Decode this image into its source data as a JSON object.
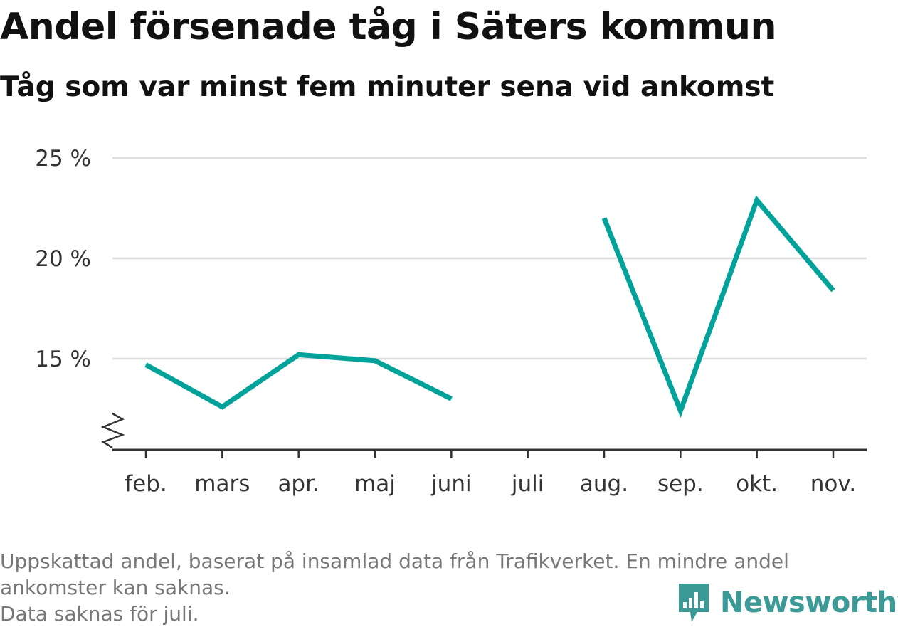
{
  "header": {
    "title": "Andel försenade tåg i Säters kommun",
    "subtitle": "Tåg som var minst fem minuter sena vid ankomst"
  },
  "chart_data": {
    "type": "line",
    "title": "Andel försenade tåg i Säters kommun",
    "subtitle": "Tåg som var minst fem minuter sena vid ankomst",
    "xlabel": "",
    "ylabel": "",
    "categories": [
      "feb.",
      "mars",
      "apr.",
      "maj",
      "juni",
      "juli",
      "aug.",
      "sep.",
      "okt.",
      "nov."
    ],
    "series": [
      {
        "values": [
          14.7,
          12.6,
          15.2,
          14.9,
          13.0,
          null,
          22.0,
          12.4,
          22.9,
          18.4
        ]
      }
    ],
    "yticks": [
      15,
      20,
      25
    ],
    "ytick_labels": [
      "15 %",
      "20 %",
      "25 %"
    ],
    "ylim": [
      11,
      25
    ],
    "axis_break": true,
    "grid": true,
    "legend": "none",
    "colors": {
      "line": "#00a29a",
      "grid": "#dddddd",
      "axis": "#333333"
    }
  },
  "footnote": {
    "line1": "Uppskattad andel, baserat på insamlad data från Trafikverket. En mindre andel",
    "line2": "ankomster kan saknas.",
    "line3": "Data saknas för juli."
  },
  "logo": {
    "text": "Newsworthy",
    "icon": "newsworthy-logo-icon",
    "color": "#3b9a96"
  }
}
